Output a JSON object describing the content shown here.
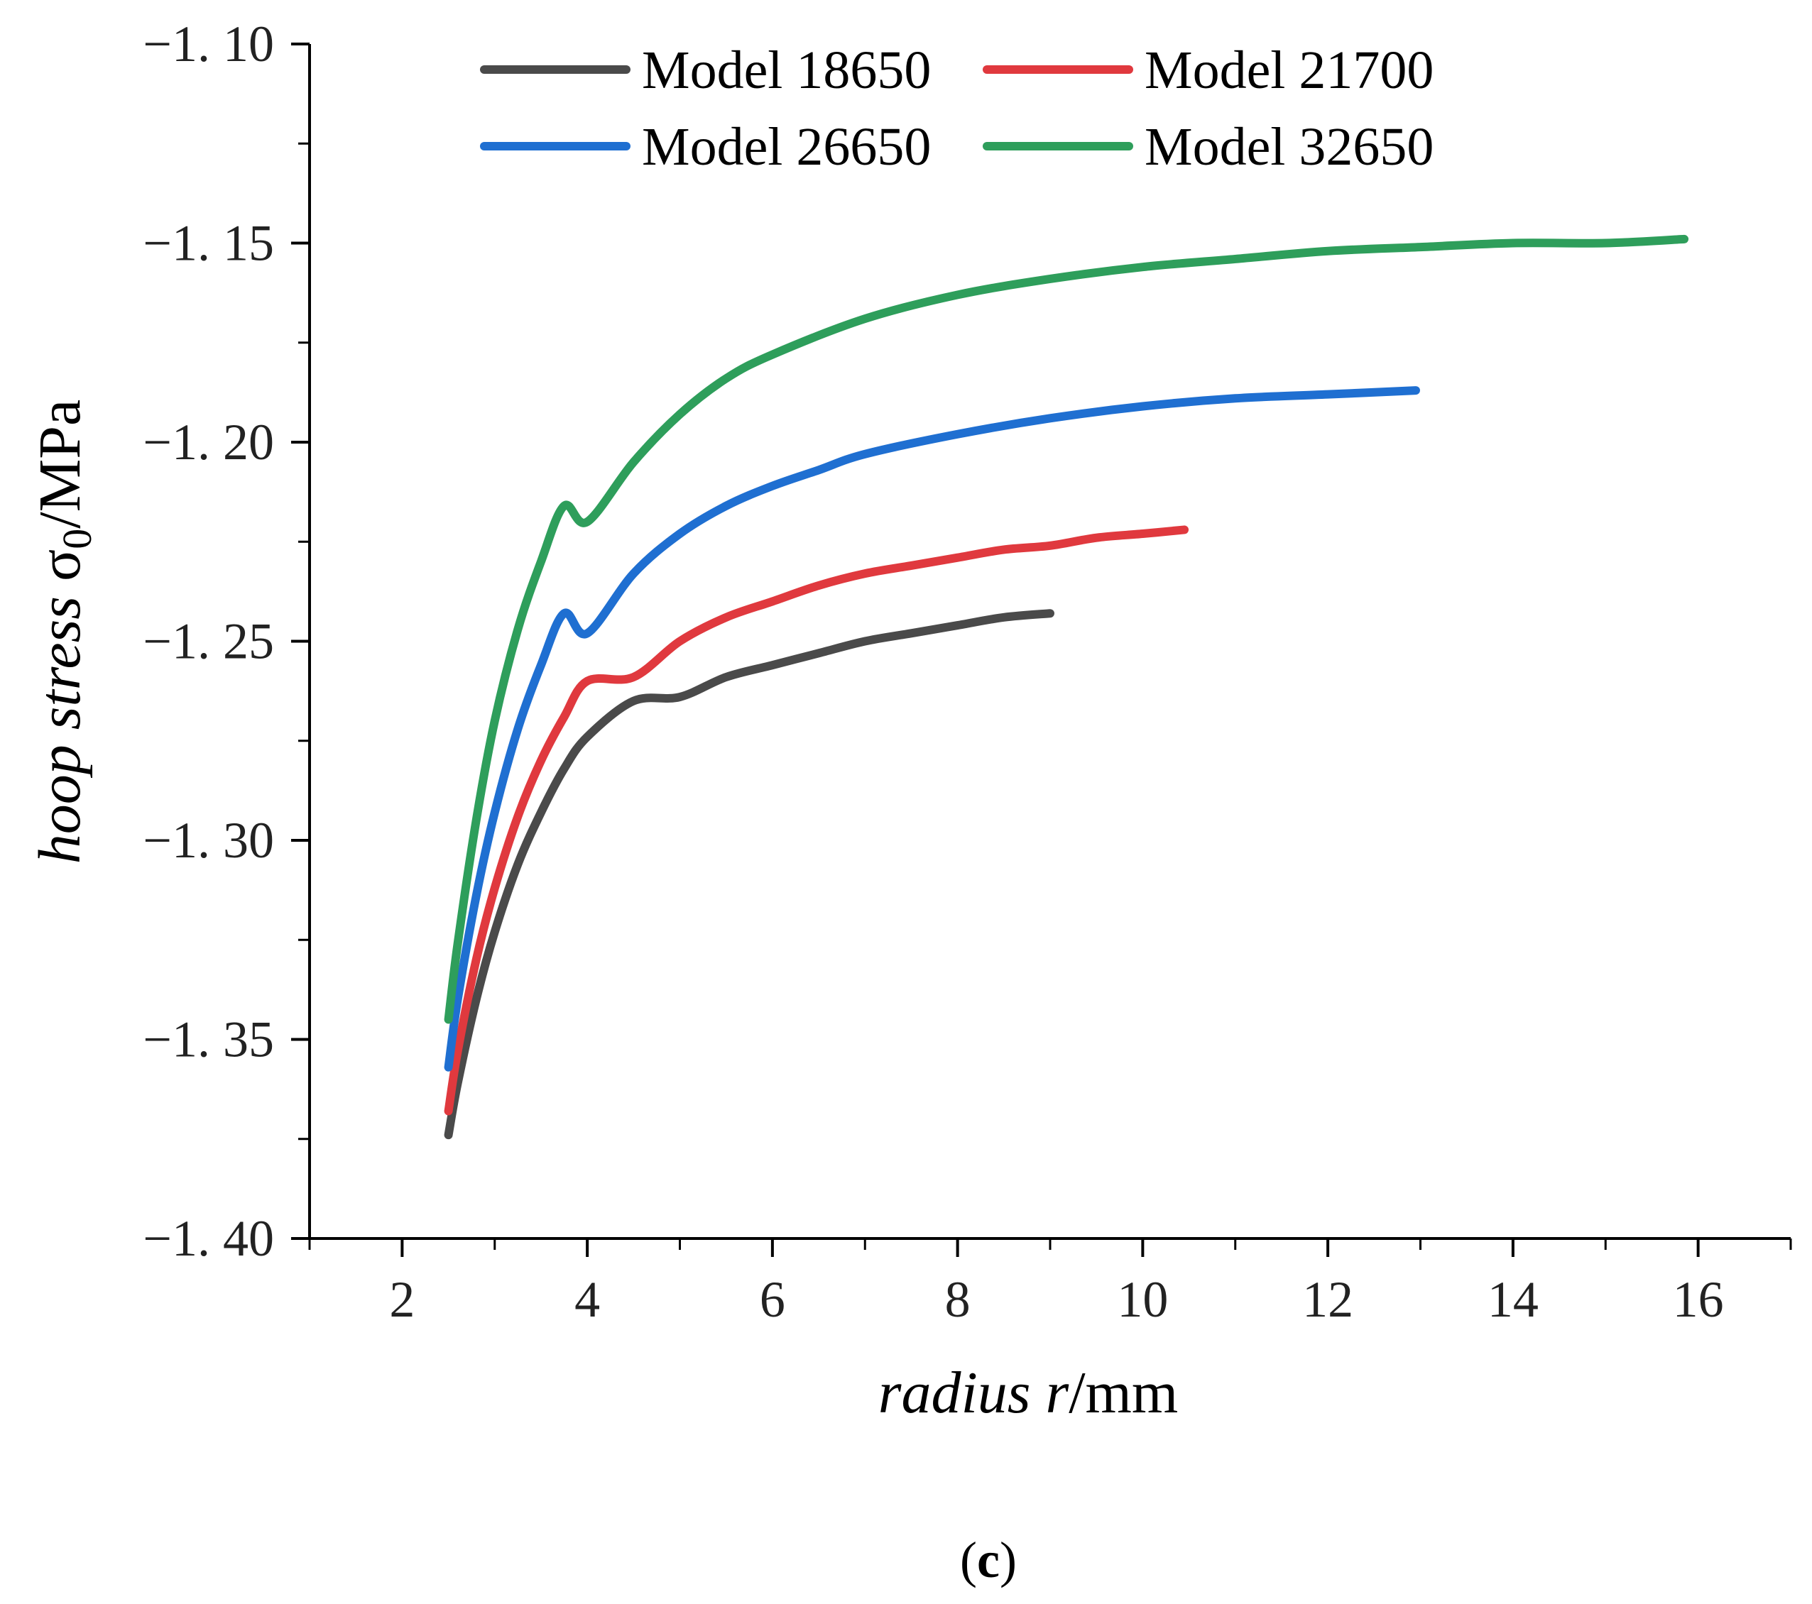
{
  "panel_label": {
    "open": "(",
    "letter": "c",
    "close": ")"
  },
  "chart_data": {
    "type": "line",
    "xlabel": {
      "italic": "radius r",
      "unit": "/mm"
    },
    "ylabel": {
      "italic": "hoop stress",
      "symbol": "σ",
      "subscript": "0",
      "unit": "/MPa"
    },
    "xlim": [
      1,
      17
    ],
    "ylim": [
      -1.4,
      -1.1
    ],
    "x_ticks": [
      2,
      4,
      6,
      8,
      10,
      12,
      14,
      16
    ],
    "x_tick_labels": [
      "2",
      "4",
      "6",
      "8",
      "10",
      "12",
      "14",
      "16"
    ],
    "y_ticks": [
      -1.1,
      -1.15,
      -1.2,
      -1.25,
      -1.3,
      -1.35,
      -1.4
    ],
    "y_tick_labels": [
      "−1. 10",
      "−1. 15",
      "−1. 20",
      "−1. 25",
      "−1. 30",
      "−1. 35",
      "−1. 40"
    ],
    "grid": false,
    "legend_placement": "top",
    "series": [
      {
        "name": "Model 18650",
        "color": "#4a4a4a",
        "x": [
          2.5,
          2.6,
          2.8,
          3.0,
          3.25,
          3.5,
          3.75,
          4.0,
          4.5,
          5.0,
          5.5,
          6.0,
          6.5,
          7.0,
          7.5,
          8.0,
          8.5,
          9.0
        ],
        "y": [
          -1.374,
          -1.361,
          -1.34,
          -1.323,
          -1.306,
          -1.293,
          -1.282,
          -1.274,
          -1.265,
          -1.264,
          -1.259,
          -1.256,
          -1.253,
          -1.25,
          -1.248,
          -1.246,
          -1.244,
          -1.243
        ]
      },
      {
        "name": "Model 21700",
        "color": "#e0393e",
        "x": [
          2.5,
          2.6,
          2.8,
          3.0,
          3.25,
          3.5,
          3.75,
          4.0,
          4.5,
          5.0,
          5.5,
          6.0,
          6.5,
          7.0,
          7.5,
          8.0,
          8.5,
          9.0,
          9.5,
          10.0,
          10.45
        ],
        "y": [
          -1.368,
          -1.353,
          -1.33,
          -1.312,
          -1.294,
          -1.28,
          -1.269,
          -1.26,
          -1.259,
          -1.25,
          -1.244,
          -1.24,
          -1.236,
          -1.233,
          -1.231,
          -1.229,
          -1.227,
          -1.226,
          -1.224,
          -1.223,
          -1.222
        ]
      },
      {
        "name": "Model 26650",
        "color": "#1f6fd1",
        "x": [
          2.5,
          2.6,
          2.8,
          3.0,
          3.25,
          3.5,
          3.75,
          4.0,
          4.5,
          5.0,
          5.5,
          6.0,
          6.5,
          7.0,
          8.0,
          9.0,
          10.0,
          11.0,
          12.0,
          12.95
        ],
        "y": [
          -1.357,
          -1.34,
          -1.314,
          -1.293,
          -1.272,
          -1.256,
          -1.243,
          -1.248,
          -1.233,
          -1.223,
          -1.216,
          -1.211,
          -1.207,
          -1.203,
          -1.198,
          -1.194,
          -1.191,
          -1.189,
          -1.188,
          -1.187
        ]
      },
      {
        "name": "Model 32650",
        "color": "#2e9e5b",
        "x": [
          2.5,
          2.6,
          2.8,
          3.0,
          3.25,
          3.5,
          3.75,
          4.0,
          4.5,
          5.0,
          5.5,
          6.0,
          7.0,
          8.0,
          9.0,
          10.0,
          11.0,
          12.0,
          13.0,
          14.0,
          15.0,
          15.85
        ],
        "y": [
          -1.345,
          -1.326,
          -1.295,
          -1.27,
          -1.247,
          -1.23,
          -1.216,
          -1.22,
          -1.205,
          -1.193,
          -1.184,
          -1.178,
          -1.169,
          -1.163,
          -1.159,
          -1.156,
          -1.154,
          -1.152,
          -1.151,
          -1.15,
          -1.15,
          -1.149
        ]
      }
    ]
  }
}
